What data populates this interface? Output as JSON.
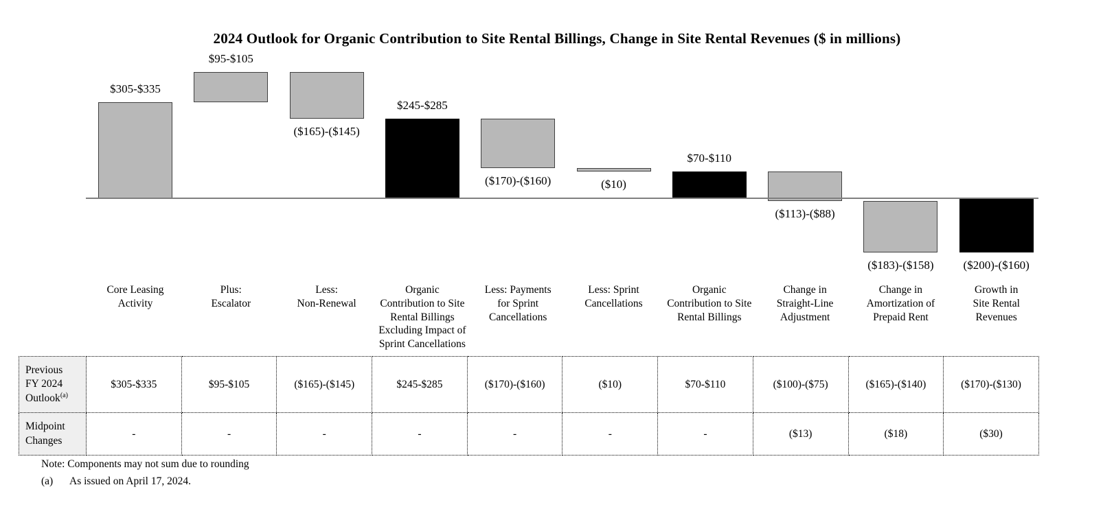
{
  "chart_data": {
    "type": "waterfall",
    "title": "2024 Outlook for Organic Contribution to Site Rental Billings, Change in Site Rental Revenues ($ in millions)",
    "value_unit": "$ in millions",
    "axis": {
      "baseline": 0,
      "gridlines": false
    },
    "bars": [
      {
        "category": "Core Leasing\nActivity",
        "range_label": "$305-$335",
        "low": 305,
        "high": 335,
        "start": 0,
        "end": 320,
        "color": "gray",
        "label_position": "above",
        "is_total": false
      },
      {
        "category": "Plus:\nEscalator",
        "range_label": "$95-$105",
        "low": 95,
        "high": 105,
        "start": 320,
        "end": 420,
        "color": "gray",
        "label_position": "above",
        "is_total": false
      },
      {
        "category": "Less:\nNon-Renewal",
        "range_label": "($165)-($145)",
        "low": -165,
        "high": -145,
        "start": 420,
        "end": 265,
        "color": "gray",
        "label_position": "below",
        "is_total": false
      },
      {
        "category": "Organic\nContribution to Site\nRental Billings\nExcluding Impact of\nSprint Cancellations",
        "range_label": "$245-$285",
        "low": 245,
        "high": 285,
        "start": 0,
        "end": 265,
        "color": "black",
        "label_position": "above",
        "is_total": true
      },
      {
        "category": "Less: Payments\nfor Sprint\nCancellations",
        "range_label": "($170)-($160)",
        "low": -170,
        "high": -160,
        "start": 265,
        "end": 100,
        "color": "gray",
        "label_position": "below",
        "is_total": false
      },
      {
        "category": "Less: Sprint\nCancellations",
        "range_label": "($10)",
        "low": -10,
        "high": -10,
        "start": 100,
        "end": 90,
        "color": "gray",
        "label_position": "below",
        "is_total": false
      },
      {
        "category": "Organic\nContribution to Site\nRental Billings",
        "range_label": "$70-$110",
        "low": 70,
        "high": 110,
        "start": 0,
        "end": 90,
        "color": "black",
        "label_position": "above",
        "is_total": true
      },
      {
        "category": "Change in\nStraight-Line\nAdjustment",
        "range_label": "($113)-($88)",
        "low": -113,
        "high": -88,
        "start": 90,
        "end": -10,
        "color": "gray",
        "label_position": "below",
        "is_total": false
      },
      {
        "category": "Change in\nAmortization of\nPrepaid Rent",
        "range_label": "($183)-($158)",
        "low": -183,
        "high": -158,
        "start": -10,
        "end": -180,
        "color": "gray",
        "label_position": "below",
        "is_total": false
      },
      {
        "category": "Growth in\nSite Rental\nRevenues",
        "range_label": "($200)-($160)",
        "low": -200,
        "high": -160,
        "start": 0,
        "end": -180,
        "color": "black",
        "label_position": "below",
        "is_total": true
      }
    ]
  },
  "table": {
    "rows": [
      {
        "header": "Previous\nFY 2024\nOutlook",
        "header_sup": "(a)",
        "values": [
          "$305-$335",
          "$95-$105",
          "($165)-($145)",
          "$245-$285",
          "($170)-($160)",
          "($10)",
          "$70-$110",
          "($100)-($75)",
          "($165)-($140)",
          "($170)-($130)"
        ]
      },
      {
        "header": "Midpoint\nChanges",
        "header_sup": "",
        "values": [
          "-",
          "-",
          "-",
          "-",
          "-",
          "-",
          "-",
          "($13)",
          "($18)",
          "($30)"
        ]
      }
    ]
  },
  "notes": {
    "rounding": "Note: Components may not sum due to rounding",
    "footnote_a_marker": "(a)",
    "footnote_a_text": "As issued on April 17, 2024."
  },
  "colors": {
    "gray_bar": "#b8b8b8",
    "black_bar": "#000000",
    "bar_border": "#3f3f3f",
    "axis_line": "#7f7f7f",
    "table_header_bg": "#efefef"
  }
}
